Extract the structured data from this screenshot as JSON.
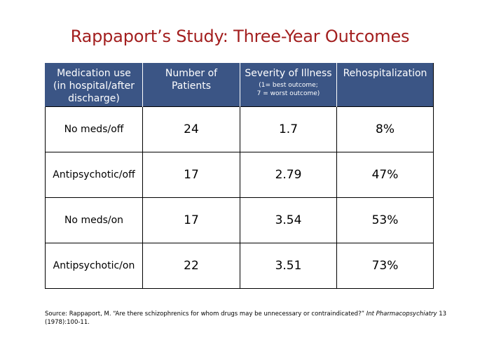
{
  "title": "Rappaport’s Study: Three-Year Outcomes",
  "table": {
    "headers": [
      {
        "lines": [
          "Medication use",
          "(in hospital/after",
          "discharge)"
        ]
      },
      {
        "lines": [
          "Number of",
          "Patients"
        ]
      },
      {
        "lines": [
          "Severity of Illness"
        ],
        "sub": [
          "(1= best outcome;",
          "7 = worst outcome)"
        ]
      },
      {
        "lines": [
          "Rehospitalization"
        ]
      }
    ],
    "rows": [
      {
        "medication": "No meds/off",
        "patients": "24",
        "severity": "1.7",
        "rehospitalization": "8%"
      },
      {
        "medication": "Antipsychotic/off",
        "patients": "17",
        "severity": "2.79",
        "rehospitalization": "47%"
      },
      {
        "medication": "No meds/on",
        "patients": "17",
        "severity": "3.54",
        "rehospitalization": "53%"
      },
      {
        "medication": "Antipsychotic/on",
        "patients": "22",
        "severity": "3.51",
        "rehospitalization": "73%"
      }
    ]
  },
  "source": {
    "prefix": "Source: Rappaport, M. “Are there schizophrenics for whom drugs may be unnecessary or contraindicated?”",
    "journal": "Int Pharmacopsychiatry",
    "suffix": "13 (1978):100-11."
  },
  "colors": {
    "title": "#a31f1f",
    "header_bg": "#3b5585",
    "header_text": "#ffffff"
  }
}
